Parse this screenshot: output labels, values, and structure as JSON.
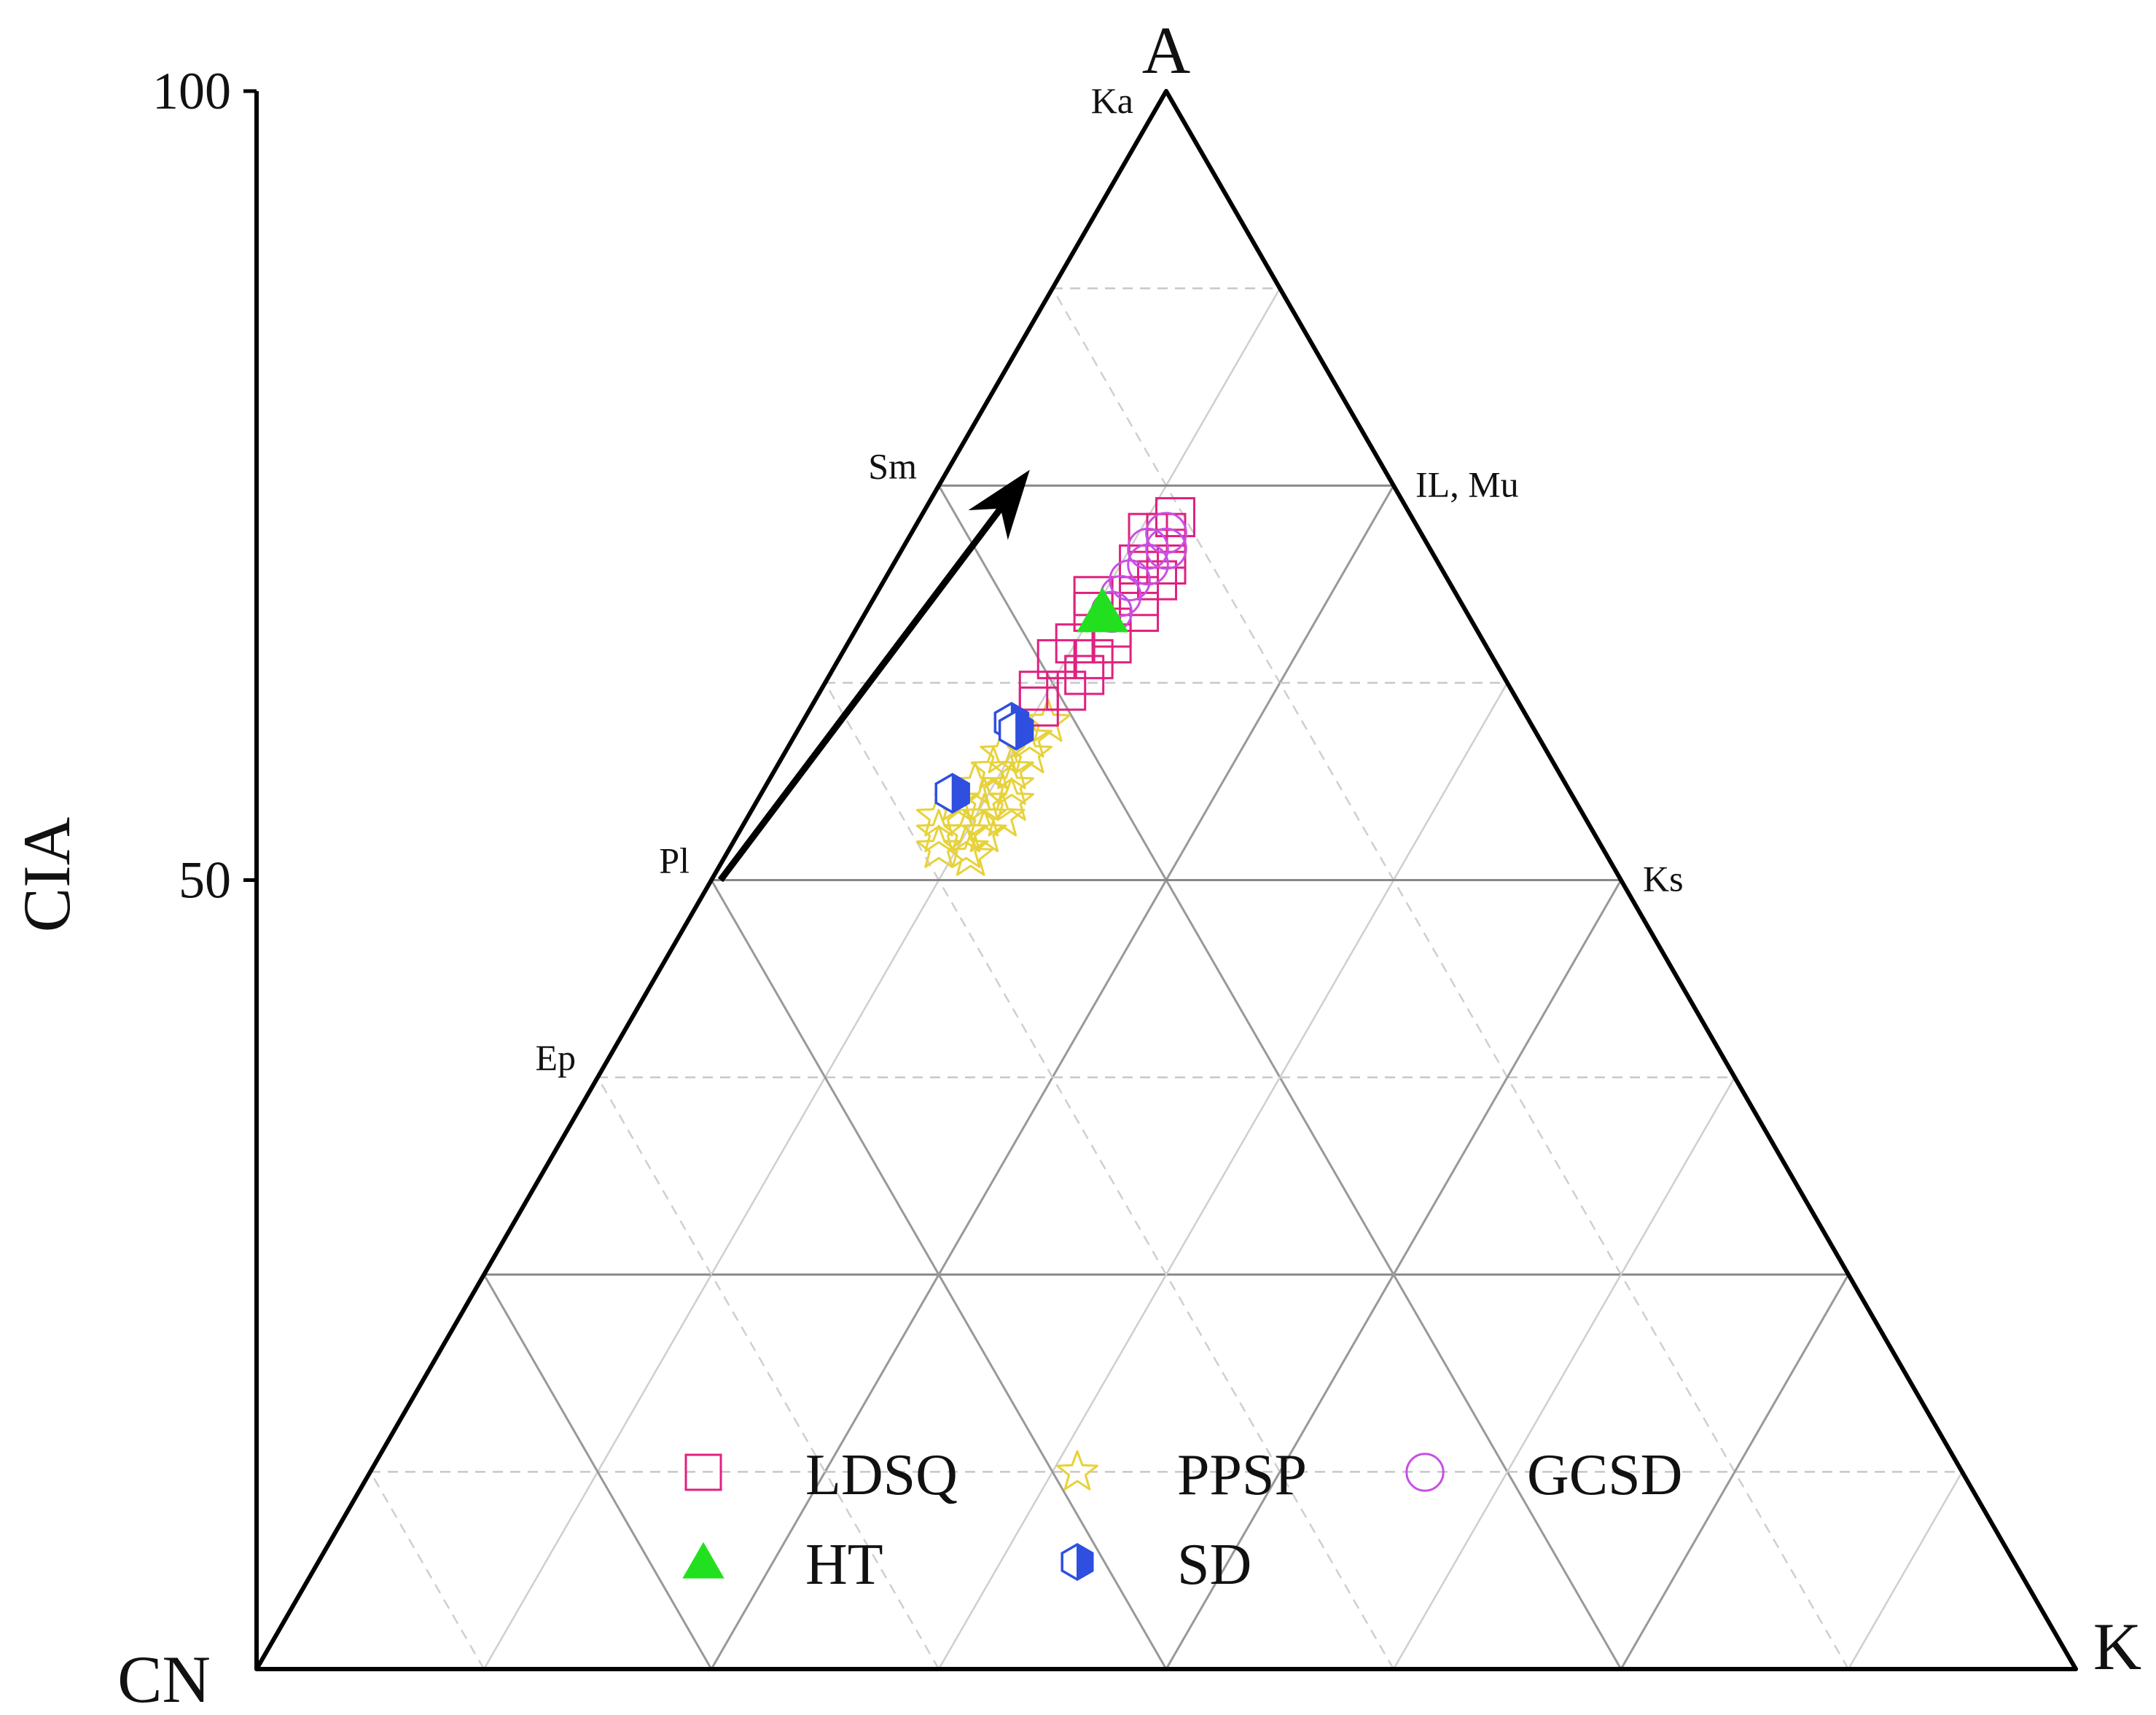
{
  "chart_data": {
    "type": "scatter",
    "subtype": "ternary",
    "title": "",
    "ylabel": "CIA",
    "yticks": [
      "100",
      "50"
    ],
    "ylim": [
      0,
      100
    ],
    "vertices": {
      "top": "A",
      "left": "CN",
      "right": "K"
    },
    "minerals": [
      {
        "name": "Ka",
        "a": 100,
        "k": 0
      },
      {
        "name": "Sm",
        "a": 75,
        "k": 0
      },
      {
        "name": "IL, Mu",
        "a": 75,
        "k": 25
      },
      {
        "name": "Pl",
        "a": 50,
        "k": 0
      },
      {
        "name": "Ks",
        "a": 50,
        "k": 50
      },
      {
        "name": "Ep",
        "a": 37.5,
        "k": 0
      }
    ],
    "grid": "solid every 25%, dashed midlines",
    "legend_position": "bottom-center",
    "series": [
      {
        "name": "LDSQ",
        "marker": "square-open",
        "color": "#e0217f",
        "points": [
          {
            "a": 73,
            "k": 14
          },
          {
            "a": 72,
            "k": 14
          },
          {
            "a": 71,
            "k": 14.5
          },
          {
            "a": 70,
            "k": 15
          },
          {
            "a": 69,
            "k": 15
          },
          {
            "a": 68,
            "k": 14.5
          },
          {
            "a": 67,
            "k": 15
          },
          {
            "a": 66,
            "k": 14
          },
          {
            "a": 65,
            "k": 14.5
          },
          {
            "a": 64,
            "k": 14
          },
          {
            "a": 63,
            "k": 14
          },
          {
            "a": 62,
            "k": 13.5
          },
          {
            "a": 68,
            "k": 12
          },
          {
            "a": 67,
            "k": 12.5
          },
          {
            "a": 65,
            "k": 12.5
          },
          {
            "a": 64,
            "k": 12
          },
          {
            "a": 62,
            "k": 12
          },
          {
            "a": 61,
            "k": 12.5
          },
          {
            "a": 70,
            "k": 13.5
          },
          {
            "a": 72,
            "k": 13
          }
        ]
      },
      {
        "name": "HT",
        "marker": "triangle-filled",
        "color": "#22e01f",
        "points": [
          {
            "a": 67,
            "k": 13
          }
        ]
      },
      {
        "name": "PPSP",
        "marker": "star-open",
        "color": "#e7d23a",
        "points": [
          {
            "a": 60,
            "k": 13.5
          },
          {
            "a": 59,
            "k": 13
          },
          {
            "a": 58,
            "k": 13.5
          },
          {
            "a": 57,
            "k": 13
          },
          {
            "a": 56,
            "k": 13.5
          },
          {
            "a": 55,
            "k": 14
          },
          {
            "a": 54,
            "k": 14
          },
          {
            "a": 53,
            "k": 13.5
          },
          {
            "a": 52,
            "k": 13
          },
          {
            "a": 51.5,
            "k": 13.5
          },
          {
            "a": 56,
            "k": 11.5
          },
          {
            "a": 55,
            "k": 11
          },
          {
            "a": 54,
            "k": 10.5
          },
          {
            "a": 53,
            "k": 11
          },
          {
            "a": 52,
            "k": 11.5
          },
          {
            "a": 57,
            "k": 12
          },
          {
            "a": 58,
            "k": 12
          },
          {
            "a": 55,
            "k": 12.5
          },
          {
            "a": 53,
            "k": 12.5
          },
          {
            "a": 54,
            "k": 13
          }
        ]
      },
      {
        "name": "SD",
        "marker": "hexagon-half",
        "color": "#2f4fe0",
        "points": [
          {
            "a": 60,
            "k": 11.5
          },
          {
            "a": 59.5,
            "k": 12
          },
          {
            "a": 55.5,
            "k": 10.5
          }
        ]
      },
      {
        "name": "GCSD",
        "marker": "circle-open",
        "color": "#c84fe3",
        "points": [
          {
            "a": 72,
            "k": 14
          },
          {
            "a": 71,
            "k": 13.5
          },
          {
            "a": 70,
            "k": 14
          },
          {
            "a": 69,
            "k": 13.5
          },
          {
            "a": 68,
            "k": 13.5
          },
          {
            "a": 67,
            "k": 13.5
          },
          {
            "a": 71,
            "k": 14.5
          }
        ]
      }
    ],
    "arrow": {
      "from": {
        "a": 50,
        "k": 0.5
      },
      "to": {
        "a": 76,
        "k": 4.5
      }
    }
  }
}
